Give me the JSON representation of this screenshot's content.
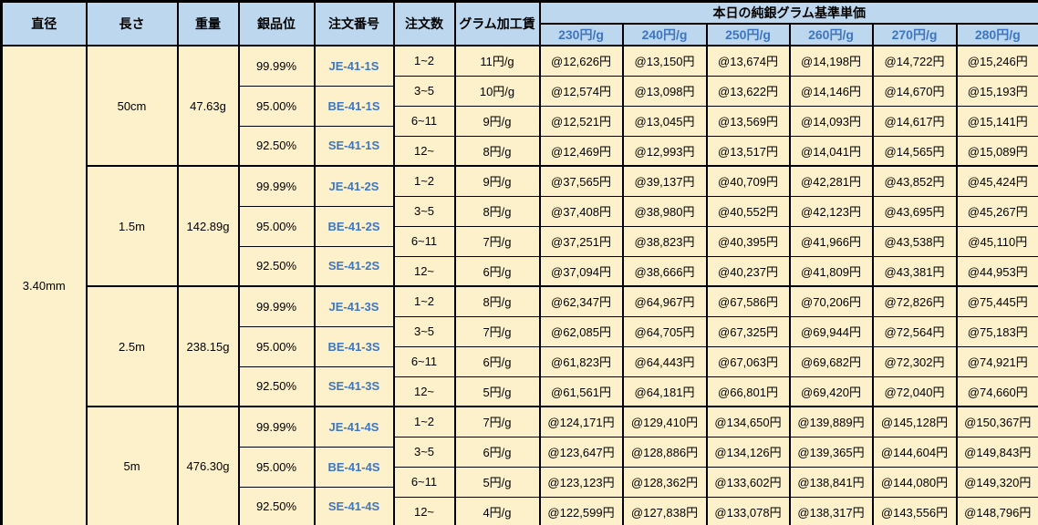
{
  "diameter": "3.40mm",
  "header": {
    "title": "本日の純銀グラム基準単価"
  },
  "columns": {
    "left": [
      "直径",
      "長さ",
      "重量",
      "銀品位",
      "注文番号",
      "注文数",
      "グラム加工賃"
    ],
    "prices": [
      "230円/g",
      "240円/g",
      "250円/g",
      "260円/g",
      "270円/g",
      "280円/g"
    ]
  },
  "sections": [
    {
      "length": "50cm",
      "weight": "47.63g",
      "purities": [
        {
          "purity": "99.99%",
          "code": "JE-41-1S"
        },
        {
          "purity": "95.00%",
          "code": "BE-41-1S"
        },
        {
          "purity": "92.50%",
          "code": "SE-41-1S"
        }
      ],
      "rows": [
        {
          "qty": "1~2",
          "fee": "11円/g",
          "prices": [
            "@12,626円",
            "@13,150円",
            "@13,674円",
            "@14,198円",
            "@14,722円",
            "@15,246円"
          ]
        },
        {
          "qty": "3~5",
          "fee": "10円/g",
          "prices": [
            "@12,574円",
            "@13,098円",
            "@13,622円",
            "@14,146円",
            "@14,670円",
            "@15,193円"
          ]
        },
        {
          "qty": "6~11",
          "fee": "9円/g",
          "prices": [
            "@12,521円",
            "@13,045円",
            "@13,569円",
            "@14,093円",
            "@14,617円",
            "@15,141円"
          ]
        },
        {
          "qty": "12~",
          "fee": "8円/g",
          "prices": [
            "@12,469円",
            "@12,993円",
            "@13,517円",
            "@14,041円",
            "@14,565円",
            "@15,089円"
          ]
        }
      ]
    },
    {
      "length": "1.5m",
      "weight": "142.89g",
      "purities": [
        {
          "purity": "99.99%",
          "code": "JE-41-2S"
        },
        {
          "purity": "95.00%",
          "code": "BE-41-2S"
        },
        {
          "purity": "92.50%",
          "code": "SE-41-2S"
        }
      ],
      "rows": [
        {
          "qty": "1~2",
          "fee": "9円/g",
          "prices": [
            "@37,565円",
            "@39,137円",
            "@40,709円",
            "@42,281円",
            "@43,852円",
            "@45,424円"
          ]
        },
        {
          "qty": "3~5",
          "fee": "8円/g",
          "prices": [
            "@37,408円",
            "@38,980円",
            "@40,552円",
            "@42,123円",
            "@43,695円",
            "@45,267円"
          ]
        },
        {
          "qty": "6~11",
          "fee": "7円/g",
          "prices": [
            "@37,251円",
            "@38,823円",
            "@40,395円",
            "@41,966円",
            "@43,538円",
            "@45,110円"
          ]
        },
        {
          "qty": "12~",
          "fee": "6円/g",
          "prices": [
            "@37,094円",
            "@38,666円",
            "@40,237円",
            "@41,809円",
            "@43,381円",
            "@44,953円"
          ]
        }
      ]
    },
    {
      "length": "2.5m",
      "weight": "238.15g",
      "purities": [
        {
          "purity": "99.99%",
          "code": "JE-41-3S"
        },
        {
          "purity": "95.00%",
          "code": "BE-41-3S"
        },
        {
          "purity": "92.50%",
          "code": "SE-41-3S"
        }
      ],
      "rows": [
        {
          "qty": "1~2",
          "fee": "8円/g",
          "prices": [
            "@62,347円",
            "@64,967円",
            "@67,586円",
            "@70,206円",
            "@72,826円",
            "@75,445円"
          ]
        },
        {
          "qty": "3~5",
          "fee": "7円/g",
          "prices": [
            "@62,085円",
            "@64,705円",
            "@67,325円",
            "@69,944円",
            "@72,564円",
            "@75,183円"
          ]
        },
        {
          "qty": "6~11",
          "fee": "6円/g",
          "prices": [
            "@61,823円",
            "@64,443円",
            "@67,063円",
            "@69,682円",
            "@72,302円",
            "@74,921円"
          ]
        },
        {
          "qty": "12~",
          "fee": "5円/g",
          "prices": [
            "@61,561円",
            "@64,181円",
            "@66,801円",
            "@69,420円",
            "@72,040円",
            "@74,660円"
          ]
        }
      ]
    },
    {
      "length": "5m",
      "weight": "476.30g",
      "purities": [
        {
          "purity": "99.99%",
          "code": "JE-41-4S"
        },
        {
          "purity": "95.00%",
          "code": "BE-41-4S"
        },
        {
          "purity": "92.50%",
          "code": "SE-41-4S"
        }
      ],
      "rows": [
        {
          "qty": "1~2",
          "fee": "7円/g",
          "prices": [
            "@124,171円",
            "@129,410円",
            "@134,650円",
            "@139,889円",
            "@145,128円",
            "@150,367円"
          ]
        },
        {
          "qty": "3~5",
          "fee": "6円/g",
          "prices": [
            "@123,647円",
            "@128,886円",
            "@134,126円",
            "@139,365円",
            "@144,604円",
            "@149,843円"
          ]
        },
        {
          "qty": "6~11",
          "fee": "5円/g",
          "prices": [
            "@123,123円",
            "@128,362円",
            "@133,602円",
            "@138,841円",
            "@144,080円",
            "@149,320円"
          ]
        },
        {
          "qty": "12~",
          "fee": "4円/g",
          "prices": [
            "@122,599円",
            "@127,838円",
            "@133,078円",
            "@138,317円",
            "@143,556円",
            "@148,796円"
          ]
        }
      ]
    }
  ],
  "colors": {
    "header_bg": "#BDD7EE",
    "body_bg": "#FDF1CB",
    "accent_text": "#3E76C2",
    "border": "#000000"
  }
}
